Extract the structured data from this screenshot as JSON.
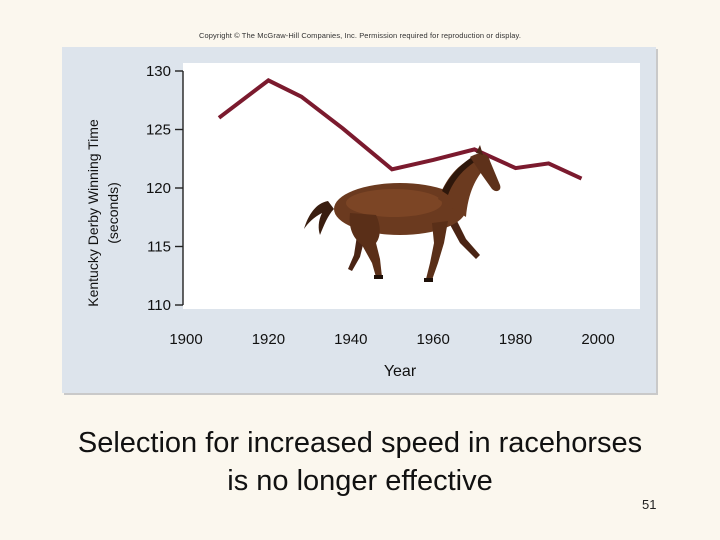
{
  "copyright": "Copyright © The McGraw-Hill Companies, Inc. Permission required for reproduction or display.",
  "caption": {
    "line1": "Selection for increased speed in racehorses",
    "line2": "is no longer effective"
  },
  "slide_number": "51",
  "colors": {
    "line": "#7b1a2e",
    "panel": "#dde4ec",
    "plot_area": "#ffffff",
    "background": "#fbf7ee"
  },
  "illustration": "horse-icon",
  "chart_data": {
    "type": "line",
    "title": "",
    "xlabel": "Year",
    "ylabel_lines": [
      "Kentucky Derby Winning Time",
      "(seconds)"
    ],
    "xlim": [
      1900,
      2010
    ],
    "ylim": [
      110,
      130
    ],
    "xticks": [
      1900,
      1920,
      1940,
      1960,
      1980,
      2000
    ],
    "yticks": [
      110,
      115,
      120,
      125,
      130
    ],
    "grid": false,
    "legend": "none",
    "series": [
      {
        "x": [
          1908,
          1920,
          1928,
          1938,
          1950,
          1960,
          1970,
          1980,
          1988,
          1996
        ],
        "y": [
          126.0,
          129.2,
          127.8,
          125.1,
          121.6,
          122.4,
          123.3,
          121.7,
          122.1,
          120.8
        ]
      }
    ]
  }
}
